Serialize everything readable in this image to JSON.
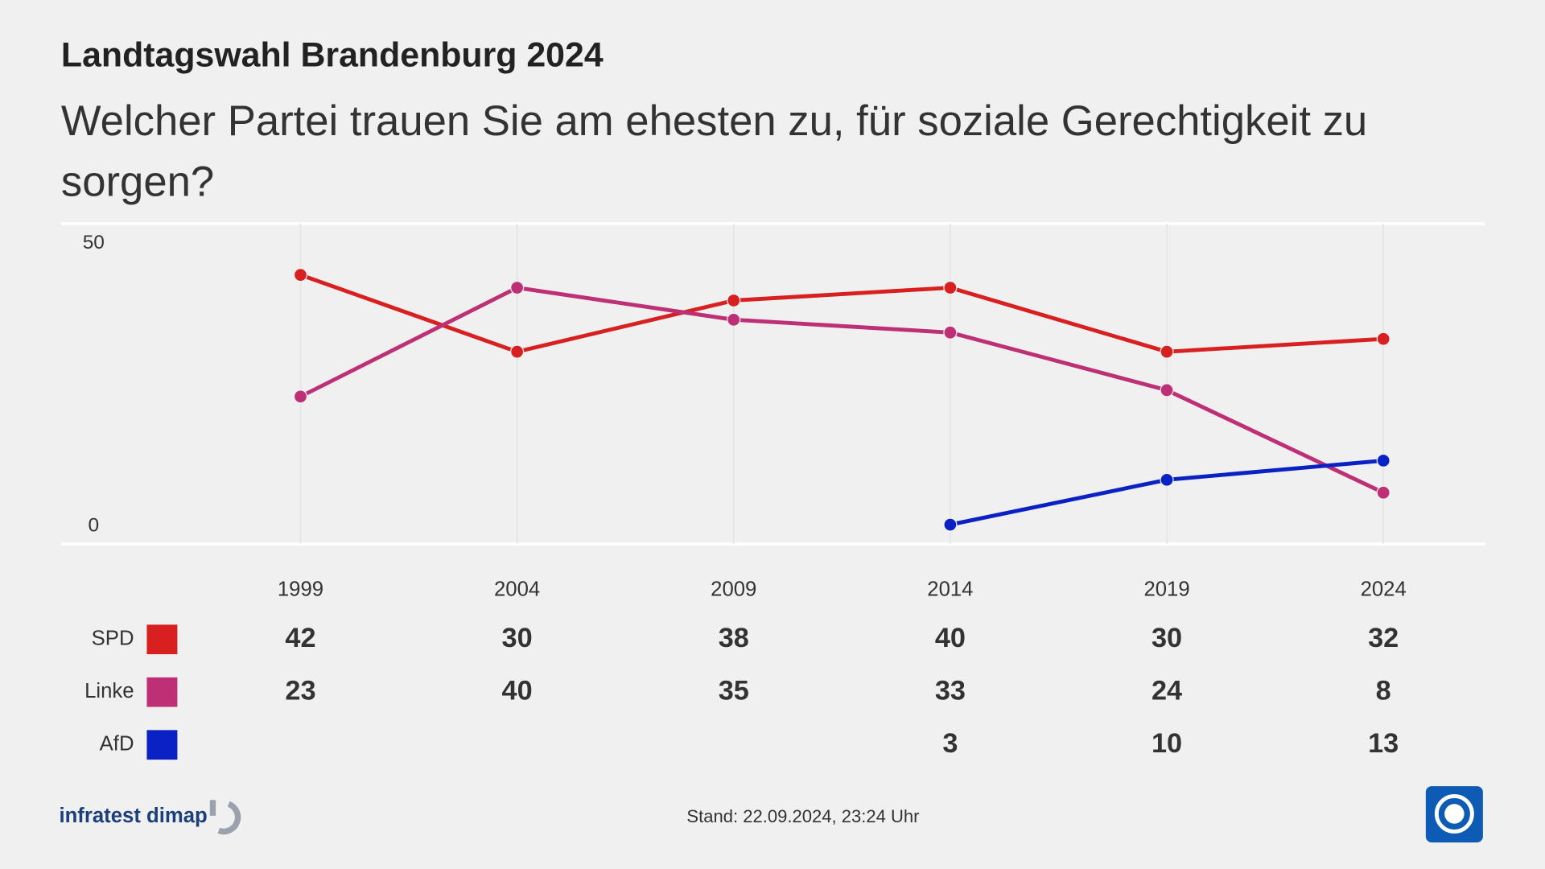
{
  "chart_data": {
    "type": "line",
    "title": "Landtagswahl Brandenburg 2024",
    "subtitle": "Welcher Partei trauen Sie am ehesten zu, für soziale Gerechtigkeit zu sorgen?",
    "categories": [
      "1999",
      "2004",
      "2009",
      "2014",
      "2019",
      "2024"
    ],
    "series": [
      {
        "name": "SPD",
        "color": "#d7201f",
        "values": [
          42,
          30,
          38,
          40,
          30,
          32
        ]
      },
      {
        "name": "Linke",
        "color": "#be3075",
        "values": [
          23,
          40,
          35,
          33,
          24,
          8
        ]
      },
      {
        "name": "AfD",
        "color": "#0a22c4",
        "values": [
          null,
          null,
          null,
          3,
          10,
          13
        ]
      }
    ],
    "ylim": [
      0,
      50
    ],
    "yticks": [
      0,
      50
    ],
    "grid": true
  },
  "footer": {
    "source": "infratest dimap",
    "stand": "Stand:  22.09.2024, 23:24 Uhr"
  }
}
